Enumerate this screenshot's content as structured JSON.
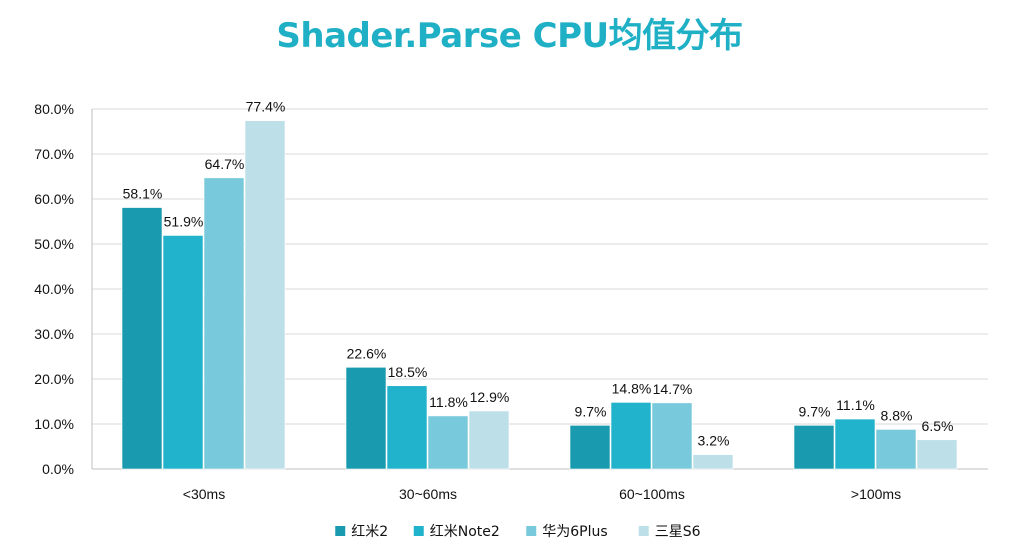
{
  "chart_data": {
    "type": "bar",
    "title": "Shader.Parse CPU均值分布",
    "xlabel": "",
    "ylabel": "",
    "categories": [
      "<30ms",
      "30~60ms",
      "60~100ms",
      ">100ms"
    ],
    "series": [
      {
        "name": "红米2",
        "values": [
          58.1,
          22.6,
          9.7,
          9.7
        ],
        "color": "#1a9aaf"
      },
      {
        "name": "红米Note2",
        "values": [
          51.9,
          18.5,
          14.8,
          11.1
        ],
        "color": "#21b3cb"
      },
      {
        "name": "华为6Plus",
        "values": [
          64.7,
          11.8,
          14.7,
          8.8
        ],
        "color": "#79c9dc"
      },
      {
        "name": "三星S6",
        "values": [
          77.4,
          12.9,
          3.2,
          6.5
        ],
        "color": "#bde0e8"
      }
    ],
    "ylim": [
      0,
      80
    ],
    "yticks": [
      0,
      10,
      20,
      30,
      40,
      50,
      60,
      70,
      80
    ],
    "value_format": "percent_1dp",
    "grid": true,
    "legend_position": "bottom"
  }
}
